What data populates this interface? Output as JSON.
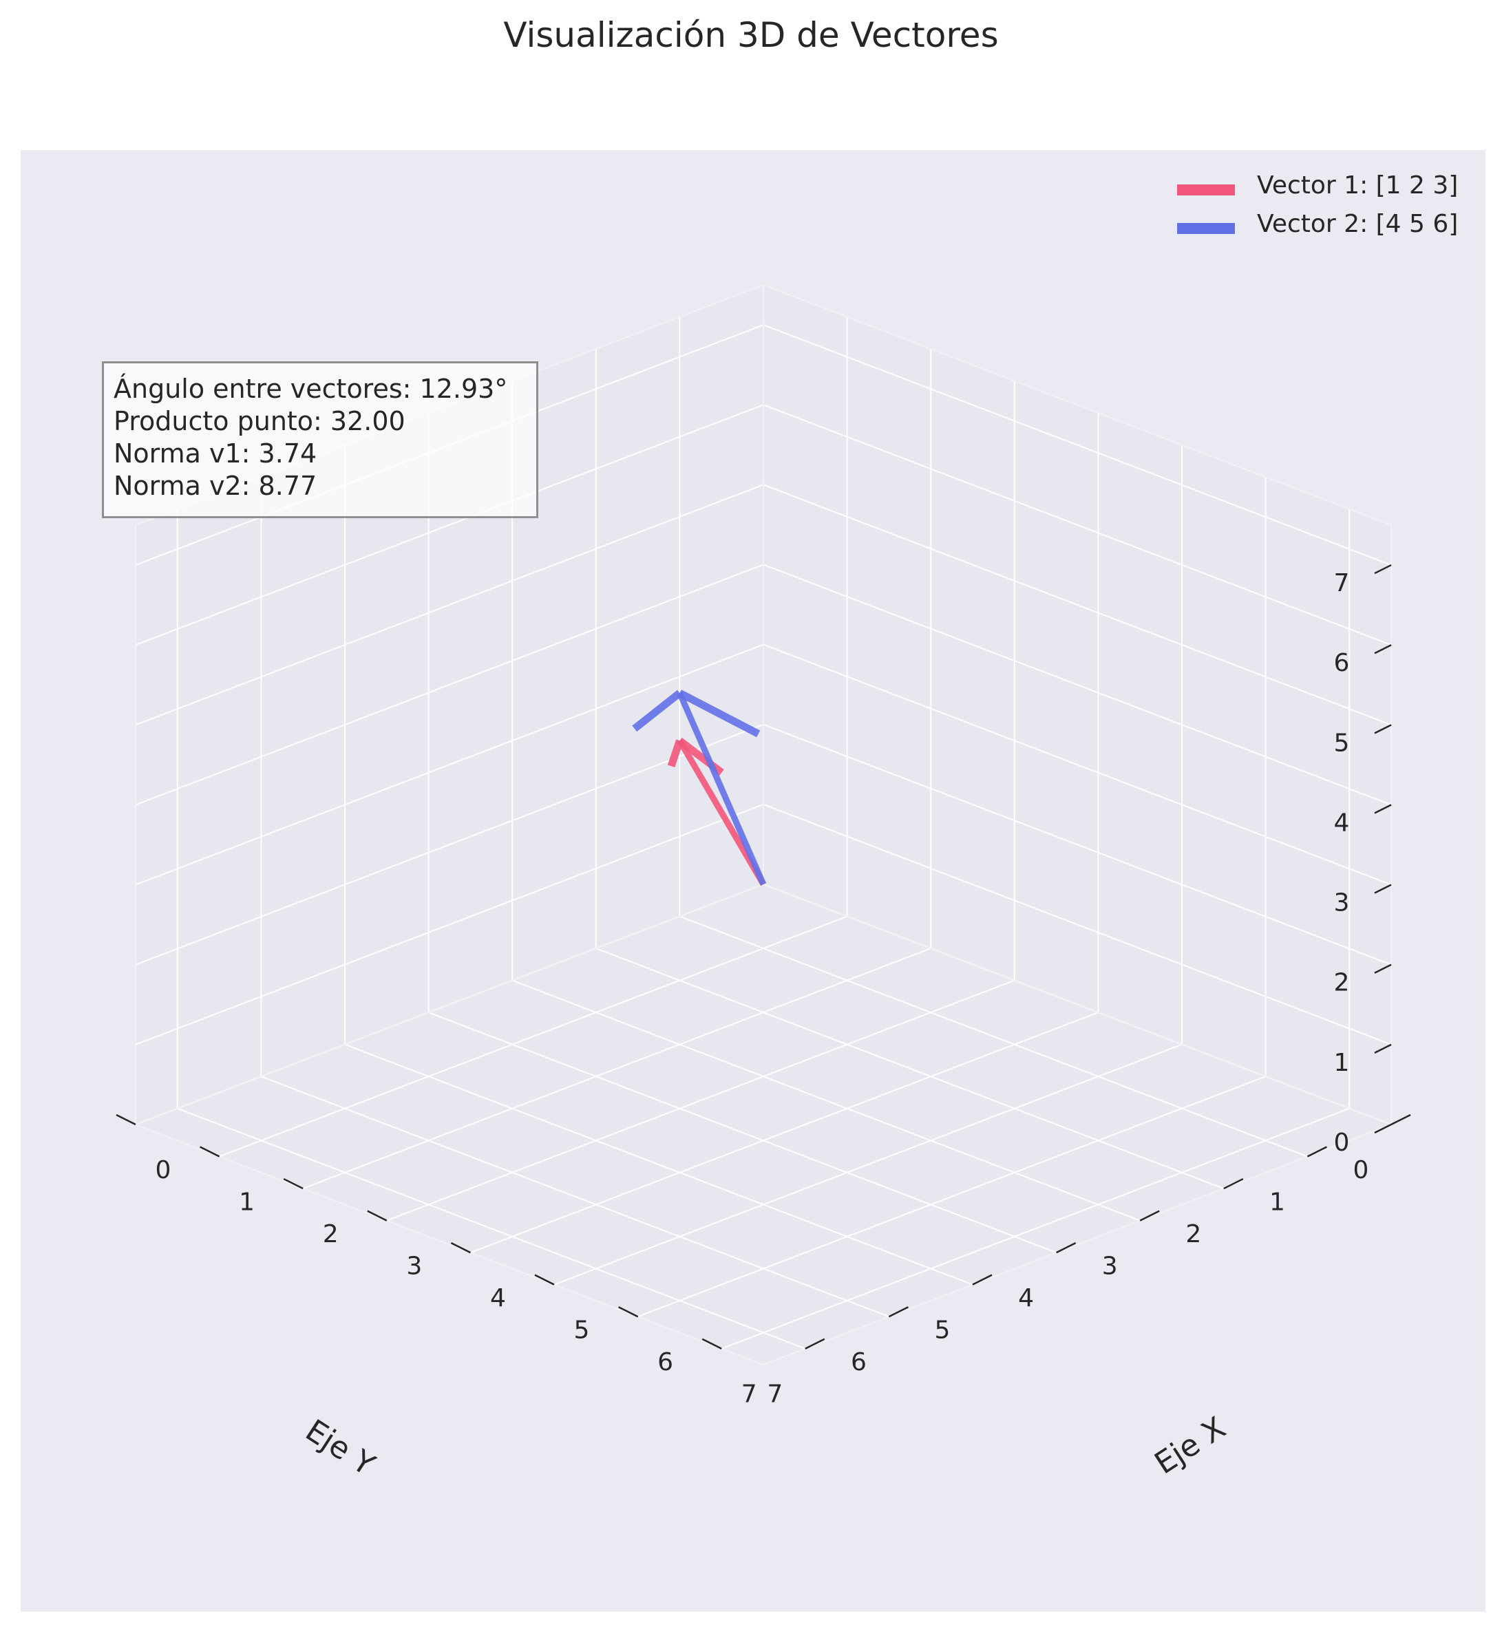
{
  "title": "Visualización 3D de Vectores",
  "stats": {
    "angle": "Ángulo entre vectores: 12.93°",
    "dot": "Producto punto: 32.00",
    "norm1": "Norma v1: 3.74",
    "norm2": "Norma v2: 8.77"
  },
  "legend": [
    {
      "label": "Vector 1: [1 2 3]",
      "color": "#f2557a"
    },
    {
      "label": "Vector 2: [4 5 6]",
      "color": "#6370e5"
    }
  ],
  "chart_data": {
    "type": "line",
    "projection": "3d",
    "title": "Visualización 3D de Vectores",
    "xlabel": "Eje X",
    "ylabel": "Eje Y",
    "zlabel": "",
    "xlim": [
      0,
      7.5
    ],
    "ylim": [
      0,
      7.5
    ],
    "zlim": [
      0,
      7.5
    ],
    "x_ticks": [
      "0",
      "1",
      "2",
      "3",
      "4",
      "5",
      "6",
      "7"
    ],
    "y_ticks": [
      "0",
      "1",
      "2",
      "3",
      "4",
      "5",
      "6",
      "7"
    ],
    "z_ticks": [
      "0",
      "1",
      "2",
      "3",
      "4",
      "5",
      "6",
      "7"
    ],
    "grid": true,
    "legend_position": "top-right",
    "series": [
      {
        "name": "Vector 1: [1 2 3]",
        "color": "#f2557a",
        "start": [
          0,
          0,
          0
        ],
        "end": [
          1,
          2,
          3
        ]
      },
      {
        "name": "Vector 2: [4 5 6]",
        "color": "#6370e5",
        "start": [
          0,
          0,
          0
        ],
        "end": [
          4,
          5,
          6
        ]
      }
    ]
  }
}
